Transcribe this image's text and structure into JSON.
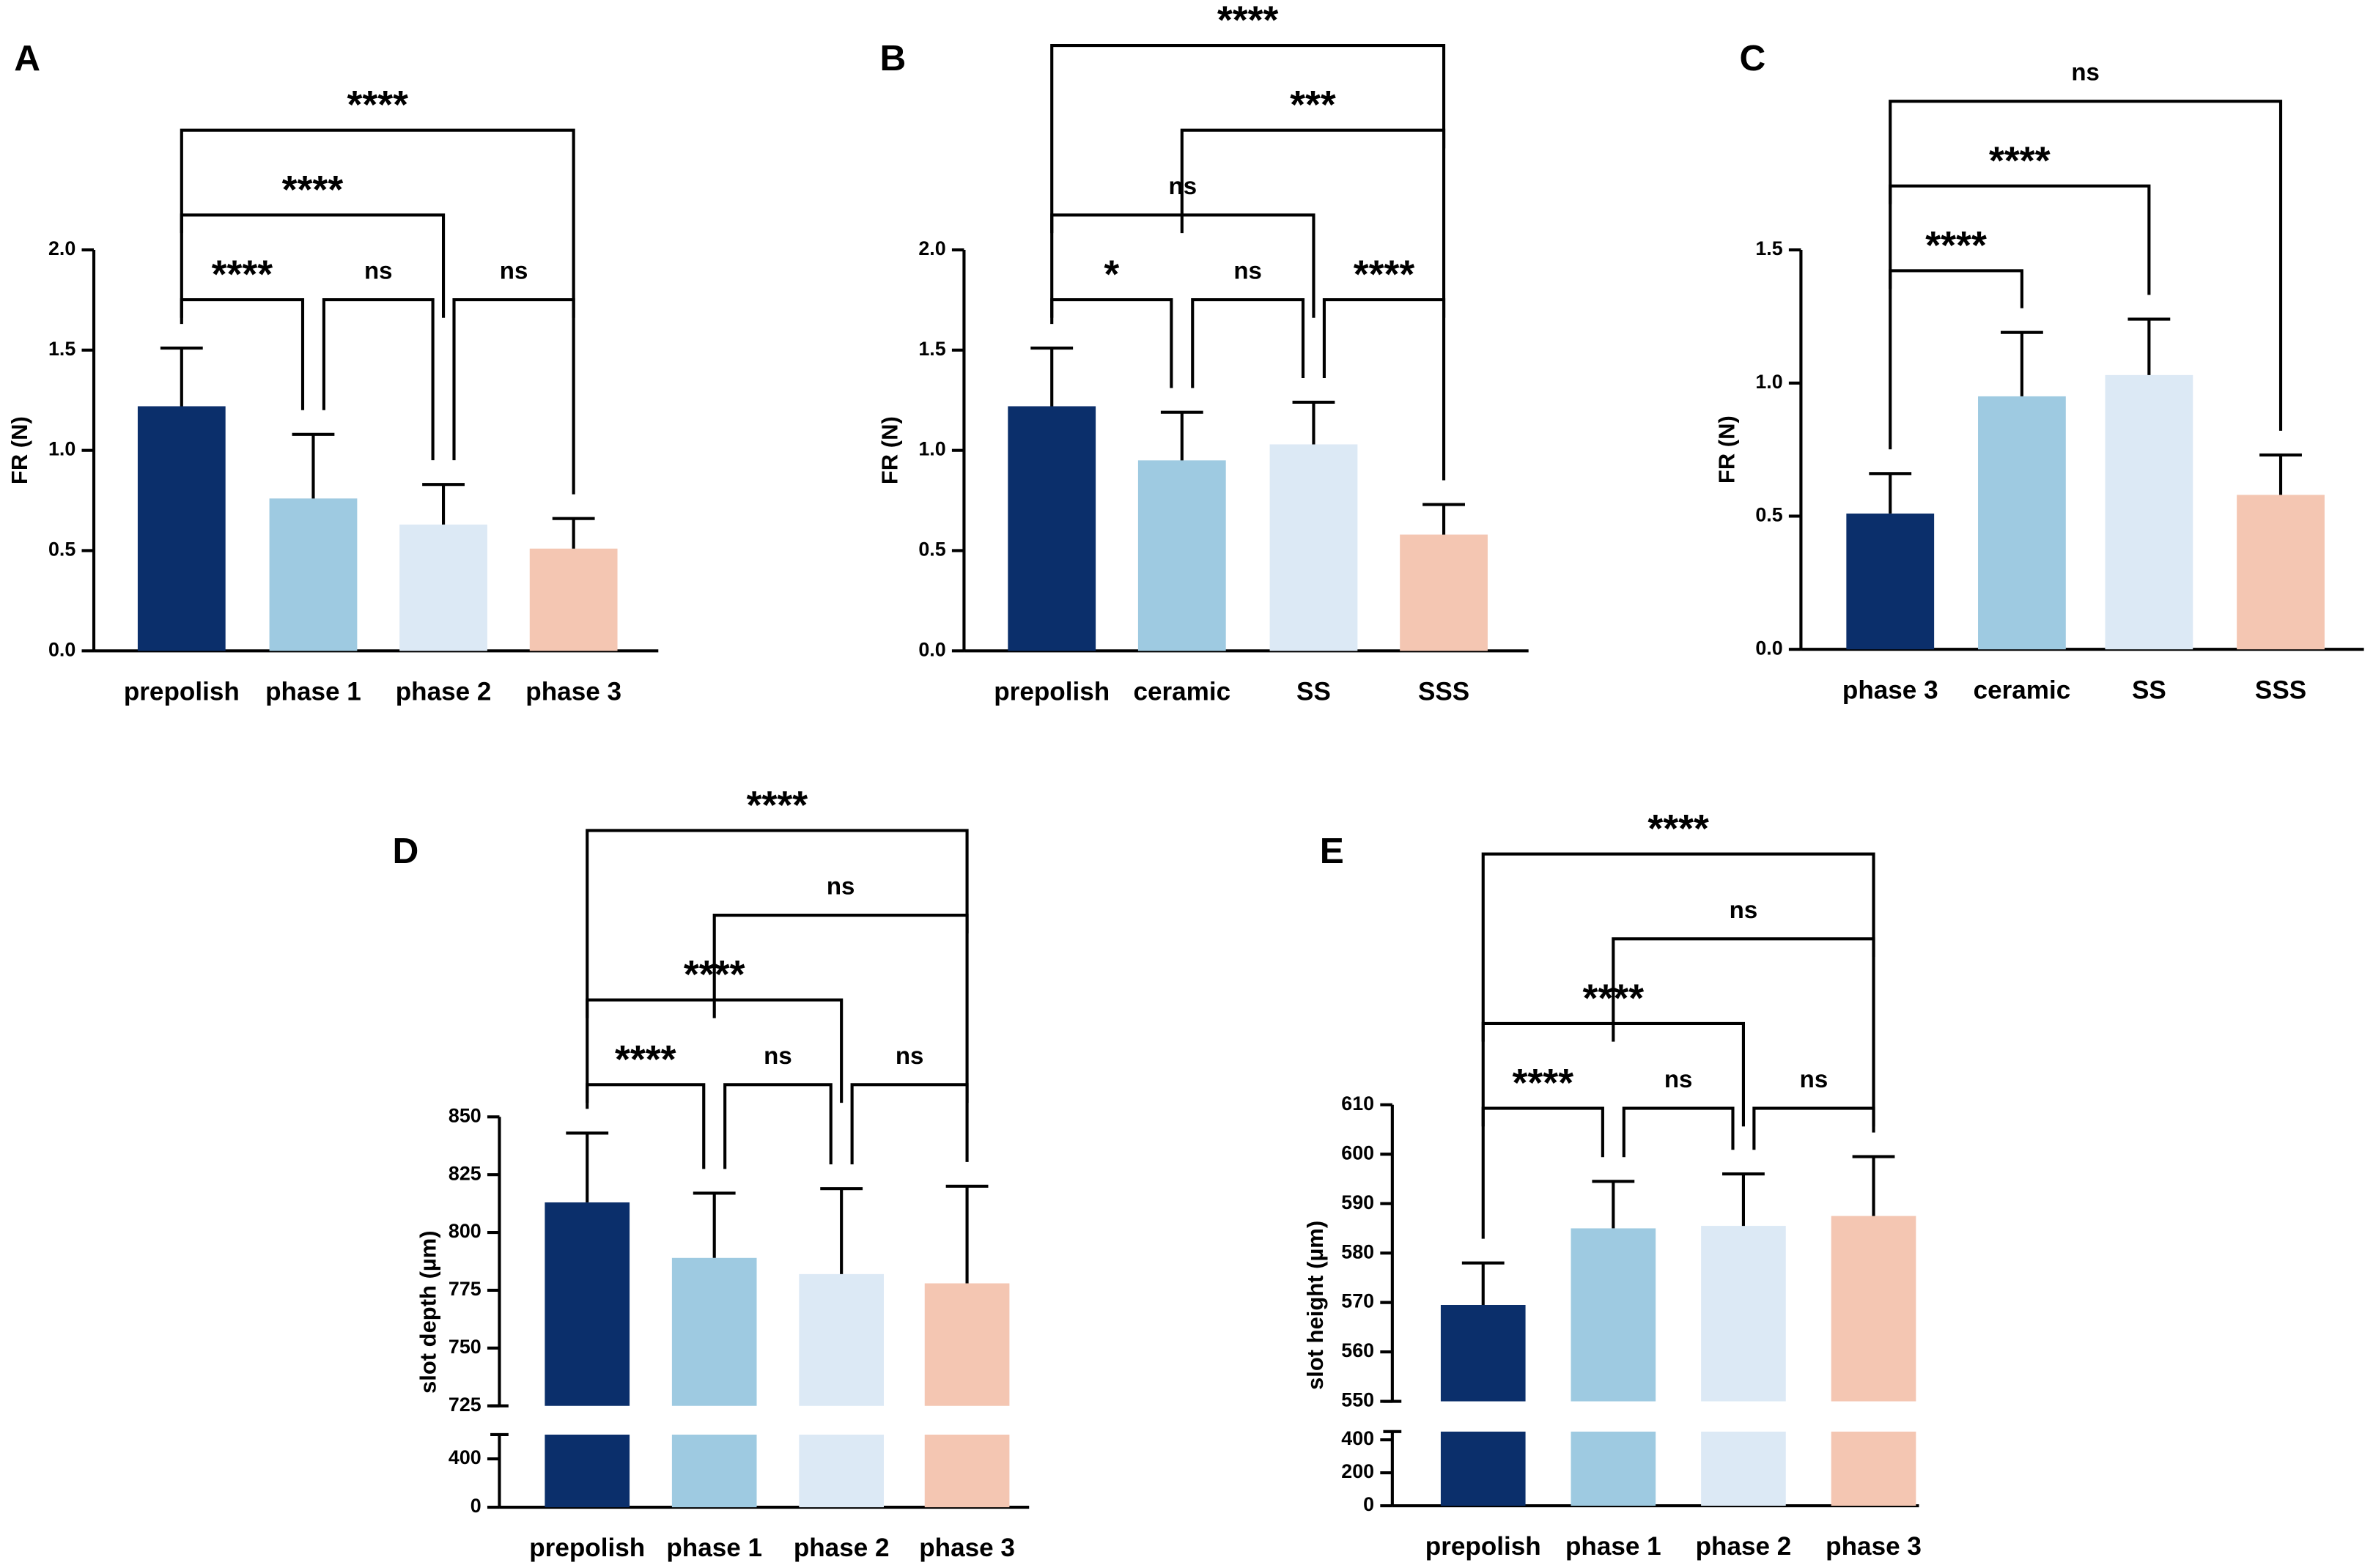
{
  "chart_data": [
    {
      "type": "bar",
      "panel_label": "A",
      "ylabel": "FR (N)",
      "categories": [
        "prepolish",
        "phase 1",
        "phase 2",
        "phase 3"
      ],
      "values": [
        1.22,
        0.76,
        0.63,
        0.51
      ],
      "errors": [
        0.29,
        0.32,
        0.2,
        0.15
      ],
      "colors": [
        "#0b2f6b",
        "#9ecae1",
        "#dce9f5",
        "#f4c6b2"
      ],
      "ylim": [
        0,
        2
      ],
      "yticks": [
        {
          "value": 0,
          "label": "0.0"
        },
        {
          "value": 0.5,
          "label": "0.5"
        },
        {
          "value": 1,
          "label": "1.0"
        },
        {
          "value": 1.5,
          "label": "1.5"
        },
        {
          "value": 2,
          "label": "2.0"
        }
      ],
      "comparisons": [
        {
          "pair": [
            0,
            1
          ],
          "label": "****"
        },
        {
          "pair": [
            1,
            2
          ],
          "label": "ns"
        },
        {
          "pair": [
            2,
            3
          ],
          "label": "ns"
        },
        {
          "pair": [
            0,
            2
          ],
          "label": "****"
        },
        {
          "pair": [
            0,
            3
          ],
          "label": "****"
        }
      ]
    },
    {
      "type": "bar",
      "panel_label": "B",
      "ylabel": "FR (N)",
      "categories": [
        "prepolish",
        "ceramic",
        "SS",
        "SSS"
      ],
      "values": [
        1.22,
        0.95,
        1.03,
        0.58
      ],
      "errors": [
        0.29,
        0.24,
        0.21,
        0.15
      ],
      "colors": [
        "#0b2f6b",
        "#9ecae1",
        "#dce9f5",
        "#f4c6b2"
      ],
      "ylim": [
        0,
        2
      ],
      "yticks": [
        {
          "value": 0,
          "label": "0.0"
        },
        {
          "value": 0.5,
          "label": "0.5"
        },
        {
          "value": 1,
          "label": "1.0"
        },
        {
          "value": 1.5,
          "label": "1.5"
        },
        {
          "value": 2,
          "label": "2.0"
        }
      ],
      "comparisons": [
        {
          "pair": [
            0,
            1
          ],
          "label": "*"
        },
        {
          "pair": [
            1,
            2
          ],
          "label": "ns"
        },
        {
          "pair": [
            2,
            3
          ],
          "label": "****"
        },
        {
          "pair": [
            0,
            2
          ],
          "label": "ns"
        },
        {
          "pair": [
            1,
            3
          ],
          "label": "***"
        },
        {
          "pair": [
            0,
            3
          ],
          "label": "****"
        }
      ]
    },
    {
      "type": "bar",
      "panel_label": "C",
      "ylabel": "FR (N)",
      "categories": [
        "phase 3",
        "ceramic",
        "SS",
        "SSS"
      ],
      "values": [
        0.51,
        0.95,
        1.03,
        0.58
      ],
      "errors": [
        0.15,
        0.24,
        0.21,
        0.15
      ],
      "colors": [
        "#0b2f6b",
        "#9ecae1",
        "#dce9f5",
        "#f4c6b2"
      ],
      "ylim": [
        0,
        1.5
      ],
      "yticks": [
        {
          "value": 0,
          "label": "0.0"
        },
        {
          "value": 0.5,
          "label": "0.5"
        },
        {
          "value": 1,
          "label": "1.0"
        },
        {
          "value": 1.5,
          "label": "1.5"
        }
      ],
      "comparisons": [
        {
          "pair": [
            0,
            1
          ],
          "label": "****"
        },
        {
          "pair": [
            0,
            2
          ],
          "label": "****"
        },
        {
          "pair": [
            0,
            3
          ],
          "label": "ns"
        }
      ]
    },
    {
      "type": "bar",
      "panel_label": "D",
      "ylabel": "slot depth (µm)",
      "categories": [
        "prepolish",
        "phase 1",
        "phase 2",
        "phase 3"
      ],
      "values": [
        813,
        789,
        782,
        778
      ],
      "errors": [
        30,
        28,
        37,
        42
      ],
      "colors": [
        "#0b2f6b",
        "#9ecae1",
        "#dce9f5",
        "#f4c6b2"
      ],
      "ylim": [
        725,
        850
      ],
      "yticks": [
        725,
        750,
        775,
        800,
        825,
        850
      ],
      "axis_break": {
        "ylim": [
          0,
          600
        ],
        "yticks": [
          0,
          400
        ]
      },
      "comparisons": [
        {
          "pair": [
            0,
            1
          ],
          "label": "****"
        },
        {
          "pair": [
            1,
            2
          ],
          "label": "ns"
        },
        {
          "pair": [
            2,
            3
          ],
          "label": "ns"
        },
        {
          "pair": [
            0,
            2
          ],
          "label": "****"
        },
        {
          "pair": [
            1,
            3
          ],
          "label": "ns"
        },
        {
          "pair": [
            0,
            3
          ],
          "label": "****"
        }
      ]
    },
    {
      "type": "bar",
      "panel_label": "E",
      "ylabel": "slot height (µm)",
      "categories": [
        "prepolish",
        "phase 1",
        "phase 2",
        "phase 3"
      ],
      "values": [
        569.5,
        585,
        585.5,
        587.5
      ],
      "errors": [
        8.5,
        9.5,
        10.5,
        12
      ],
      "colors": [
        "#0b2f6b",
        "#9ecae1",
        "#dce9f5",
        "#f4c6b2"
      ],
      "ylim": [
        550,
        610
      ],
      "yticks": [
        550,
        560,
        570,
        580,
        590,
        600,
        610
      ],
      "axis_break": {
        "ylim": [
          0,
          450
        ],
        "yticks": [
          0,
          200,
          400
        ]
      },
      "comparisons": [
        {
          "pair": [
            0,
            1
          ],
          "label": "****"
        },
        {
          "pair": [
            1,
            2
          ],
          "label": "ns"
        },
        {
          "pair": [
            2,
            3
          ],
          "label": "ns"
        },
        {
          "pair": [
            0,
            2
          ],
          "label": "****"
        },
        {
          "pair": [
            1,
            3
          ],
          "label": "ns"
        },
        {
          "pair": [
            0,
            3
          ],
          "label": "****"
        }
      ]
    }
  ]
}
